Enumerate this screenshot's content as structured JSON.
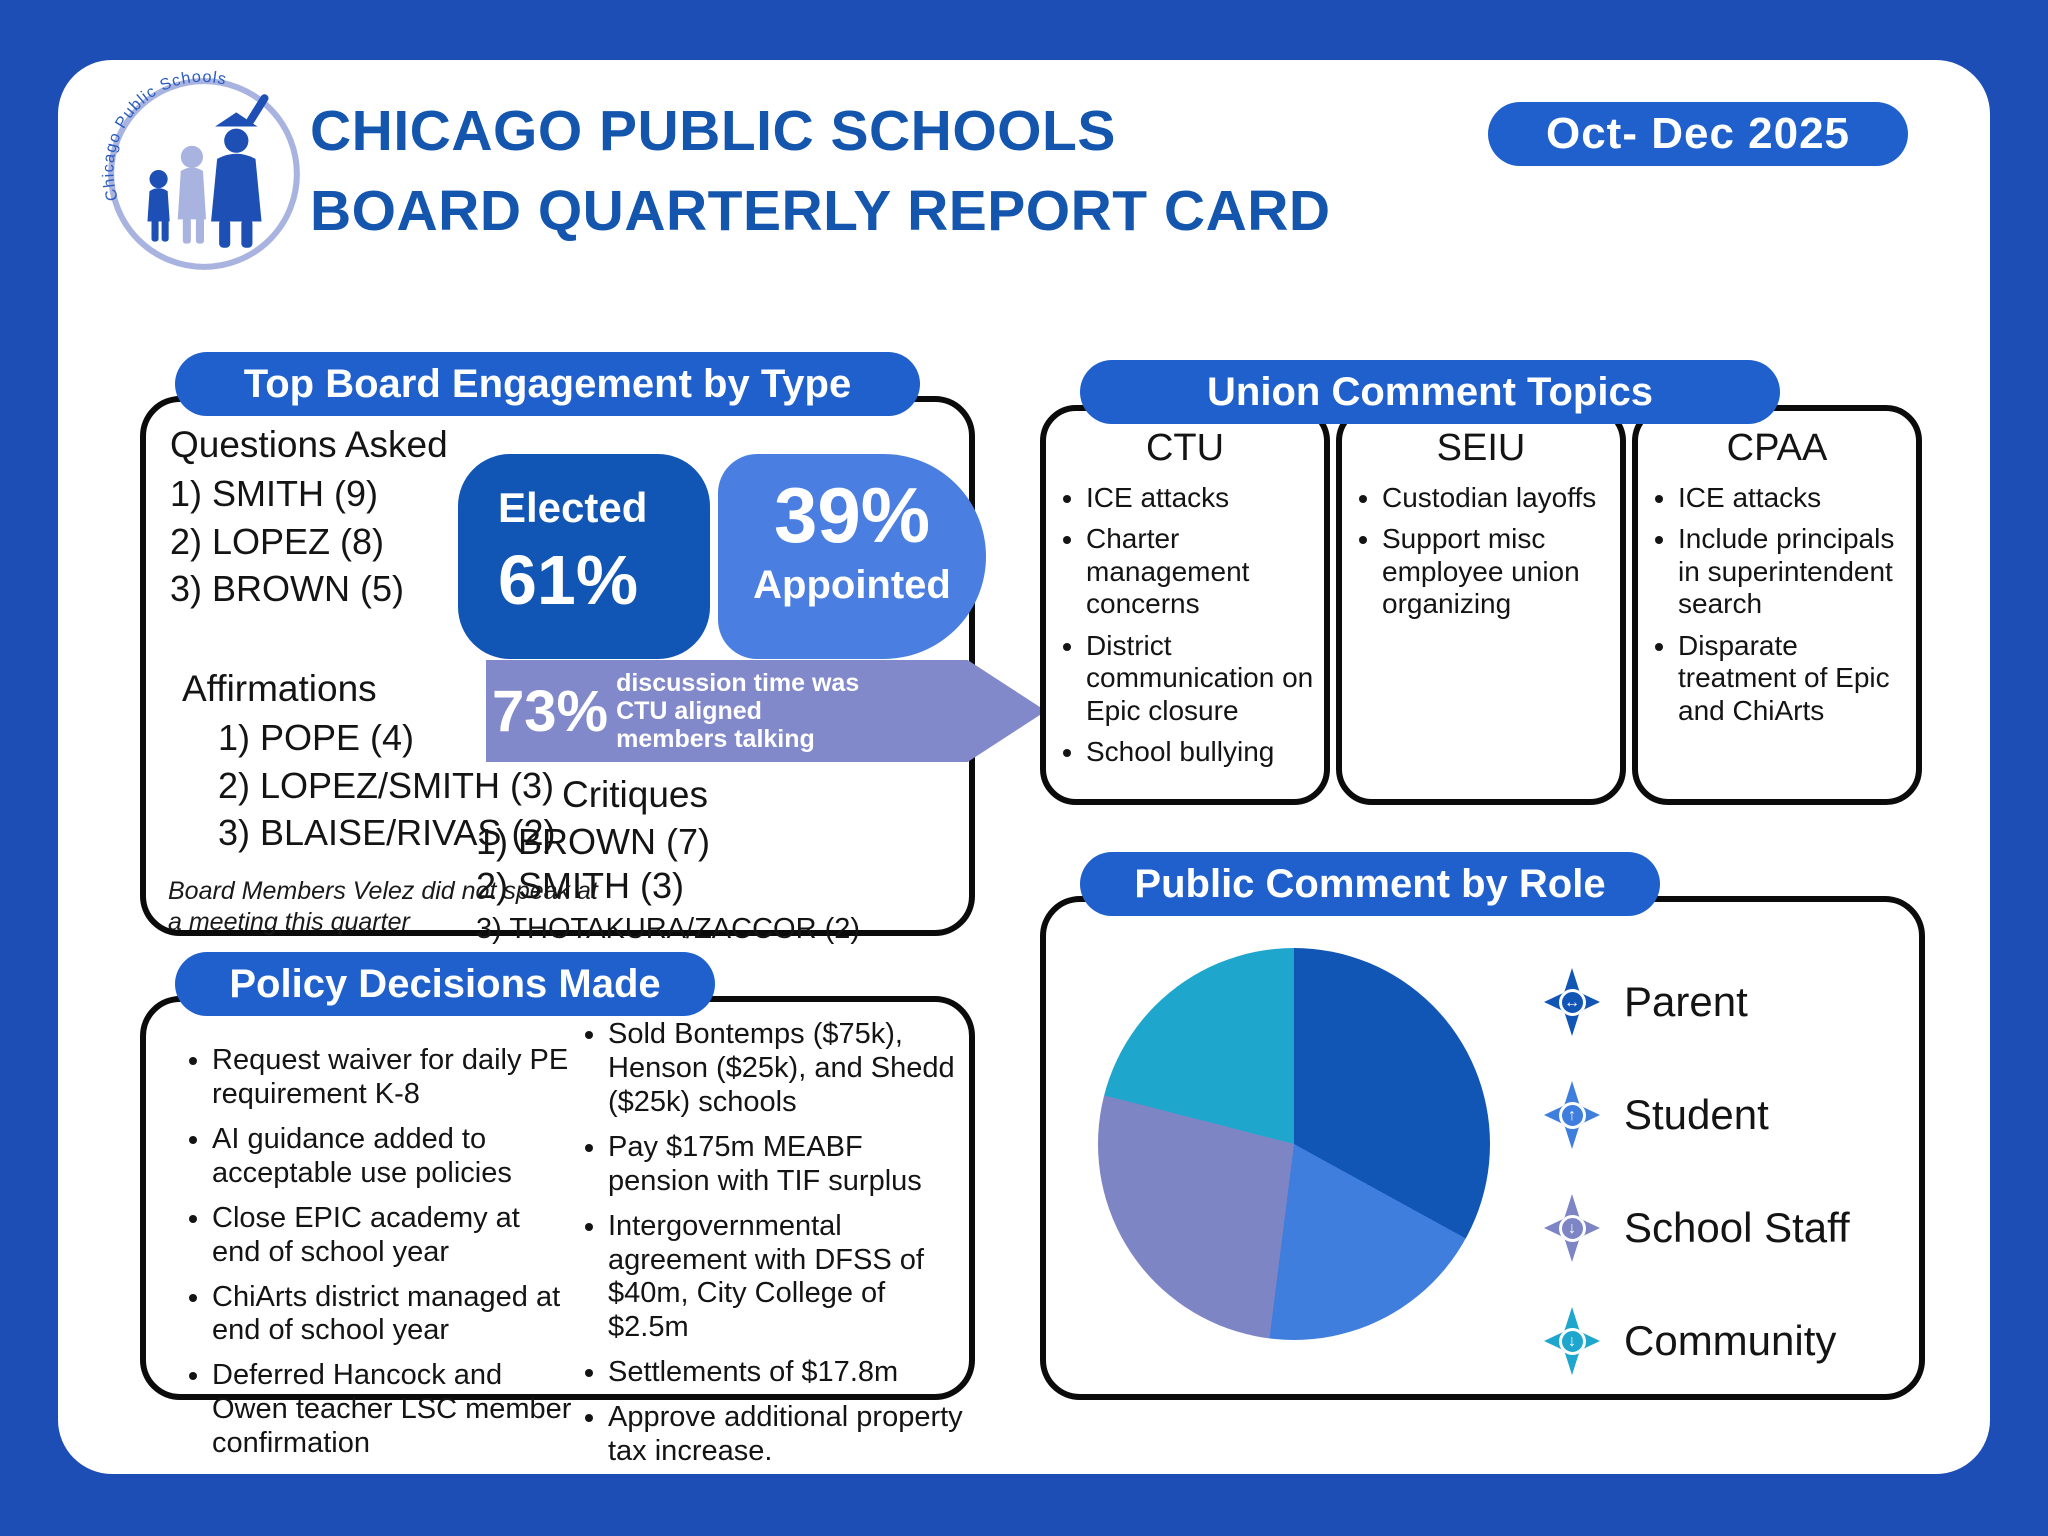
{
  "header": {
    "logo_text": "Chicago Public Schools",
    "title_line1": "CHICAGO PUBLIC SCHOOLS",
    "title_line2": "BOARD QUARTERLY REPORT CARD",
    "date_badge": "Oct- Dec  2025"
  },
  "engagement": {
    "header": "Top Board Engagement by Type",
    "questions": {
      "label": "Questions Asked",
      "items": [
        "1) SMITH (9)",
        "2) LOPEZ (8)",
        "3) BROWN (5)"
      ]
    },
    "elected": {
      "label": "Elected",
      "pct": "61%"
    },
    "appointed": {
      "pct": "39%",
      "label": "Appointed"
    },
    "affirmations": {
      "label": "Affirmations",
      "items": [
        "1) POPE (4)",
        "2) LOPEZ/SMITH (3)",
        "3) BLAISE/RIVAS (2)"
      ]
    },
    "banner": {
      "pct": "73%",
      "text": "discussion time was CTU aligned members talking"
    },
    "critiques": {
      "label": "Critiques",
      "item1": "1) BROWN (7)",
      "item2": "2) SMITH (3)",
      "item3": "3) THOTAKURA/ZACCOR (2)"
    },
    "footnote": "Board Members Velez did not speak at a meeting this quarter"
  },
  "union": {
    "header": "Union Comment Topics",
    "groups": [
      {
        "name": "CTU",
        "items": [
          "ICE attacks",
          "Charter management concerns",
          "District communication on Epic closure",
          "School bullying"
        ]
      },
      {
        "name": "SEIU",
        "items": [
          "Custodian layoffs",
          "Support misc employee union organizing"
        ]
      },
      {
        "name": "CPAA",
        "items": [
          "ICE attacks",
          "Include principals in superintendent search",
          "Disparate treatment of Epic and ChiArts"
        ]
      }
    ]
  },
  "policy": {
    "header": "Policy Decisions Made",
    "left_items": [
      "Request waiver for daily PE requirement K-8",
      "AI guidance added to acceptable use policies",
      "Close EPIC academy at end of school year",
      "ChiArts district managed at end of school year",
      "Deferred Hancock and Owen teacher LSC member confirmation"
    ],
    "right_items": [
      "Sold Bontemps ($75k), Henson ($25k), and Shedd ($25k) schools",
      "Pay $175m MEABF pension with TIF surplus",
      "Intergovernmental agreement with DFSS of $40m, City College of $2.5m",
      "Settlements of $17.8m",
      "Approve additional property tax increase."
    ]
  },
  "public_comment": {
    "header": "Public Comment by Role"
  },
  "chart_data": {
    "type": "pie",
    "title": "Public Comment by Role",
    "labels": [
      "Parent",
      "Student",
      "School Staff",
      "Community"
    ],
    "values": [
      33,
      19,
      27,
      21
    ],
    "colors": [
      "#1155b5",
      "#3f7edd",
      "#7d85c5",
      "#1ea6cd"
    ],
    "legend_icons": [
      "↔",
      "↑",
      "↓",
      "↓"
    ],
    "legend_position": "right",
    "units": "percent"
  },
  "colors": {
    "background": "#1d4eb5",
    "header_pill": "#1f60cc",
    "dark_blue": "#1155b5",
    "light_blue": "#4a7ee0",
    "banner_purple": "#8289ca",
    "teal": "#1ea6cd",
    "title_blue": "#1456ad"
  }
}
